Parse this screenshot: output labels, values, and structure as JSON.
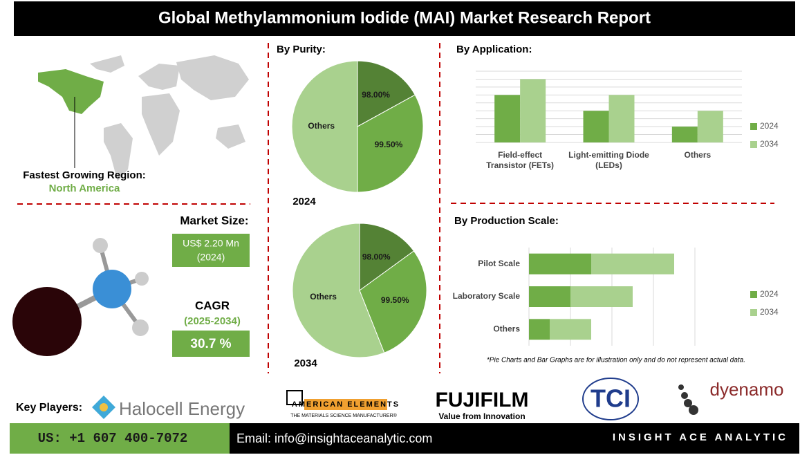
{
  "header": {
    "title": "Global Methylammonium Iodide (MAI) Market Research Report"
  },
  "region": {
    "label": "Fastest Growing Region:",
    "value": "North America"
  },
  "market_size": {
    "label": "Market Size:",
    "value": "US$ 2.20 Mn",
    "year": "(2024)"
  },
  "cagr": {
    "label": "CAGR",
    "period": "(2025-2034)",
    "value": "30.7 %"
  },
  "key_players": {
    "label": "Key Players:",
    "companies": [
      "Halocell Energy",
      "AMERICAN ELEMENTS",
      "THE MATERIALS SCIENCE MANUFACTURER®",
      "FUJIFILM",
      "Value from Innovation",
      "TCI",
      "dyenamo"
    ]
  },
  "footer": {
    "phone": "US: +1 607 400-7072",
    "email": "Email: info@insightaceanalytic.com",
    "brand": "INSIGHT ACE ANALYTIC"
  },
  "note": "*Pie Charts and Bar Graphs are for illustration only and do not represent actual data.",
  "chart_data": [
    {
      "type": "pie",
      "title": "By Purity:",
      "subtitle": "2024",
      "categories": [
        "98.00%",
        "99.50%",
        "Others"
      ],
      "values": [
        17,
        33,
        50
      ],
      "colors": [
        "#548235",
        "#70ad47",
        "#a9d18e"
      ]
    },
    {
      "type": "pie",
      "subtitle": "2034",
      "categories": [
        "98.00%",
        "99.50%",
        "Others"
      ],
      "values": [
        15,
        29,
        56
      ],
      "colors": [
        "#548235",
        "#70ad47",
        "#a9d18e"
      ]
    },
    {
      "type": "bar",
      "title": "By Application:",
      "categories": [
        "Field-effect Transistor (FETs)",
        "Light-emitting Diode (LEDs)",
        "Others"
      ],
      "series": [
        {
          "name": "2024",
          "color": "#70ad47",
          "values": [
            6,
            4,
            2
          ]
        },
        {
          "name": "2034",
          "color": "#a9d18e",
          "values": [
            8,
            6,
            4
          ]
        }
      ],
      "ylim": [
        0,
        9
      ],
      "yticks": [
        0,
        1,
        2,
        3,
        4,
        5,
        6,
        7,
        8,
        9
      ],
      "grid": true,
      "legend": "right"
    },
    {
      "type": "stacked-barh",
      "title": "By Production Scale:",
      "categories": [
        "Pilot Scale",
        "Laboratory Scale",
        "Others"
      ],
      "series": [
        {
          "name": "2024",
          "color": "#70ad47",
          "values": [
            1.5,
            1,
            0.5
          ]
        },
        {
          "name": "2034",
          "color": "#a9d18e",
          "values": [
            2,
            1.5,
            1
          ]
        }
      ],
      "xlim": [
        0,
        4
      ],
      "xticks": [
        0,
        1,
        2,
        3,
        4
      ],
      "grid": true,
      "legend": "right"
    }
  ]
}
